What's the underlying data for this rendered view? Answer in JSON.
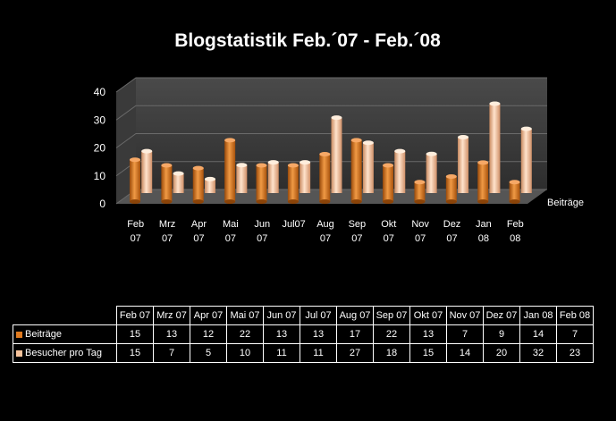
{
  "chart_data": {
    "type": "bar",
    "title": "Blogstatistik Feb.´07 - Feb.´08",
    "categories": [
      "Feb 07",
      "Mrz 07",
      "Apr 07",
      "Mai 07",
      "Jun 07",
      "Jul 07",
      "Aug 07",
      "Sep 07",
      "Okt 07",
      "Nov 07",
      "Dez 07",
      "Jan 08",
      "Feb 08"
    ],
    "series": [
      {
        "name": "Beiträge",
        "color": "#e07a1f",
        "values": [
          15,
          13,
          12,
          22,
          13,
          13,
          17,
          22,
          13,
          7,
          9,
          14,
          7
        ]
      },
      {
        "name": "Besucher pro Tag",
        "color": "#f6c39c",
        "values": [
          15,
          7,
          5,
          10,
          11,
          11,
          27,
          18,
          15,
          14,
          20,
          32,
          23
        ]
      }
    ],
    "depth_axis_label": "Beiträge",
    "yticks": [
      0,
      10,
      20,
      30,
      40
    ],
    "ylim": [
      0,
      40
    ],
    "legend": "table-below"
  }
}
